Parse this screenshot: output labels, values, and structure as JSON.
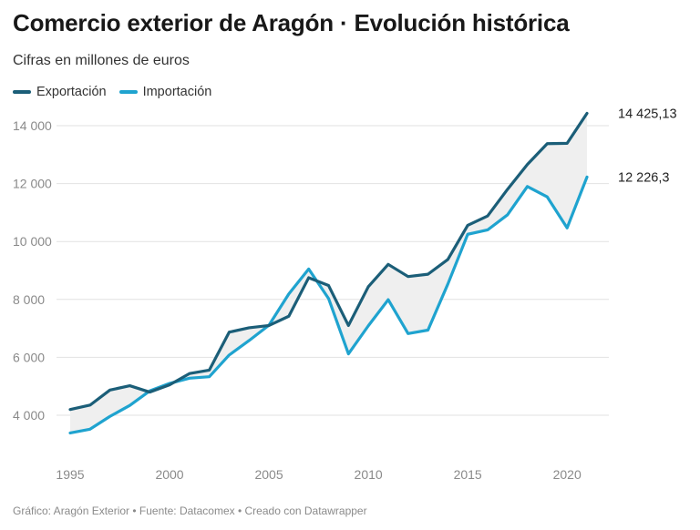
{
  "title": "Comercio exterior de Aragón · Evolución histórica",
  "subtitle": "Cifras en millones de euros",
  "footer": "Gráfico: Aragón Exterior • Fuente: Datacomex • Creado con Datawrapper",
  "legend": [
    {
      "label": "Exportación",
      "color": "#1b5e78"
    },
    {
      "label": "Importación",
      "color": "#1fa3cf"
    }
  ],
  "chart_data": {
    "type": "line",
    "x": [
      1995,
      1996,
      1997,
      1998,
      1999,
      2000,
      2001,
      2002,
      2003,
      2004,
      2005,
      2006,
      2007,
      2008,
      2009,
      2010,
      2011,
      2012,
      2013,
      2014,
      2015,
      2016,
      2017,
      2018,
      2019,
      2020,
      2021
    ],
    "series": [
      {
        "name": "Exportación",
        "color": "#1b5e78",
        "values": [
          4200,
          4350,
          4870,
          5020,
          4800,
          5050,
          5440,
          5560,
          6870,
          7020,
          7100,
          7420,
          8750,
          8480,
          7100,
          8440,
          9210,
          8790,
          8870,
          9380,
          10560,
          10880,
          11800,
          12660,
          13380,
          13390,
          14425.13
        ]
      },
      {
        "name": "Importación",
        "color": "#1fa3cf",
        "values": [
          3390,
          3520,
          3960,
          4340,
          4840,
          5100,
          5280,
          5330,
          6080,
          6580,
          7110,
          8190,
          9050,
          8030,
          6120,
          7090,
          7990,
          6820,
          6940,
          8530,
          10250,
          10400,
          10920,
          11900,
          11540,
          10470,
          12226.3
        ]
      }
    ],
    "end_labels": [
      "14 425,13",
      "12 226,3"
    ],
    "x_ticks": [
      1995,
      2000,
      2005,
      2010,
      2015,
      2020
    ],
    "x_tick_labels": [
      "1995",
      "2000",
      "2005",
      "2010",
      "2015",
      "2020"
    ],
    "y_ticks": [
      4000,
      6000,
      8000,
      10000,
      12000,
      14000
    ],
    "y_tick_labels": [
      "4 000",
      "6 000",
      "8 000",
      "10 000",
      "12 000",
      "14 000"
    ],
    "xlim": [
      1995,
      2021
    ],
    "ylim": [
      3000,
      14600
    ],
    "grid": "horizontal",
    "legend_position": "top-left",
    "fill_between": true,
    "fill_color": "#efefef"
  }
}
